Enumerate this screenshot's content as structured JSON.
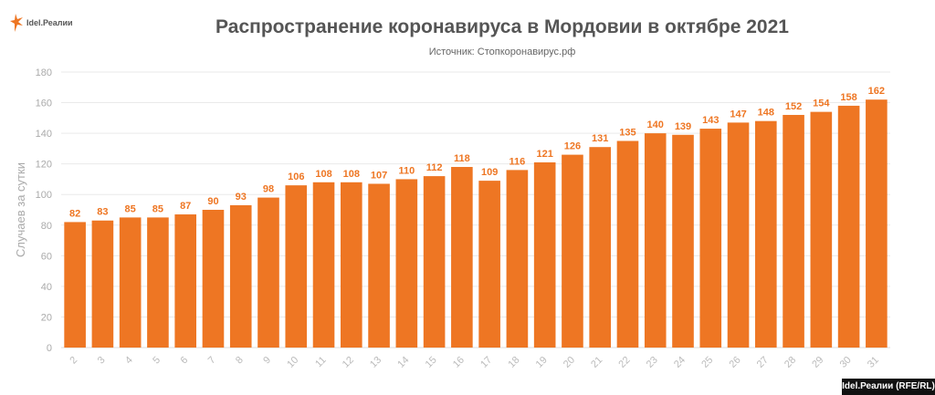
{
  "logo": {
    "text": "Idel.Реалии",
    "icon": "rfe-rl-flame-logo",
    "color": "#ee7623"
  },
  "credit": "Idel.Реалии (RFE/RL)",
  "chart_data": {
    "type": "bar",
    "title": "Распространение коронавируса в Мордовии в октябре 2021",
    "subtitle": "Источник: Стопкоронавирус.рф",
    "xlabel": "",
    "ylabel": "Случаев за сутки",
    "ylim": [
      0,
      180
    ],
    "yticks": [
      0,
      20,
      40,
      60,
      80,
      100,
      120,
      140,
      160,
      180
    ],
    "grid": true,
    "bar_color": "#ee7623",
    "categories": [
      "2",
      "3",
      "4",
      "5",
      "6",
      "7",
      "8",
      "9",
      "10",
      "11",
      "12",
      "13",
      "14",
      "15",
      "16",
      "17",
      "18",
      "19",
      "20",
      "21",
      "22",
      "23",
      "24",
      "25",
      "26",
      "27",
      "28",
      "29",
      "30",
      "31"
    ],
    "values": [
      82,
      83,
      85,
      85,
      87,
      90,
      93,
      98,
      106,
      108,
      108,
      107,
      110,
      112,
      118,
      109,
      116,
      121,
      126,
      131,
      135,
      140,
      139,
      143,
      147,
      148,
      152,
      154,
      158,
      162
    ]
  }
}
